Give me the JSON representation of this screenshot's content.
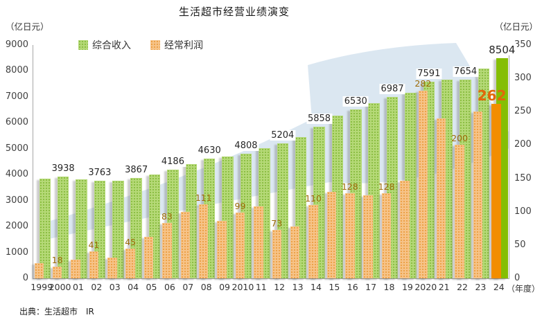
{
  "title": "生活超市经营业绩演变",
  "left_axis_unit": "（亿日元）",
  "right_axis_unit": "（亿日元）",
  "x_axis_unit": "（年度）",
  "source": "出典：生活超市　IR",
  "legend": [
    {
      "label": "综合收入",
      "color": "#a9d15f"
    },
    {
      "label": "经常利润",
      "color": "#f3ab57"
    }
  ],
  "colors": {
    "revenue_fill": "#b5d977",
    "revenue_dot": "#86b93c",
    "revenue_solid": "#85be05",
    "profit_fill": "#f6c388",
    "profit_dot": "#eb9c3e",
    "profit_solid": "#f28d00",
    "arrow_background": "#dbe7f1",
    "revenue_label": "#262626",
    "profit_label": "#9c6a08",
    "highlight_label": "#e2670b",
    "axis_line": "#a6a6a6"
  },
  "chart_data": {
    "type": "bar",
    "categories": [
      "1999",
      "2000",
      "01",
      "02",
      "03",
      "04",
      "05",
      "06",
      "07",
      "08",
      "09",
      "2010",
      "11",
      "12",
      "13",
      "14",
      "15",
      "16",
      "17",
      "18",
      "19",
      "2020",
      "21",
      "22",
      "23",
      "24"
    ],
    "series": [
      {
        "name": "综合收入",
        "axis": "left",
        "values": [
          3850,
          3938,
          3810,
          3763,
          3770,
          3867,
          4000,
          4186,
          4400,
          4630,
          4700,
          4808,
          5030,
          5204,
          5450,
          5858,
          6280,
          6530,
          6760,
          6987,
          7150,
          7591,
          7660,
          7654,
          8100,
          8504
        ],
        "labels": [
          "",
          "3938",
          "",
          "3763",
          "",
          "3867",
          "",
          "4186",
          "",
          "4630",
          "",
          "4808",
          "",
          "5204",
          "",
          "5858",
          "",
          "6530",
          "",
          "6987",
          "",
          "7591",
          "",
          "7654",
          "",
          "8504"
        ]
      },
      {
        "name": "经常利润",
        "axis": "right",
        "values": [
          23,
          18,
          28,
          41,
          31,
          45,
          62,
          83,
          100,
          111,
          86,
          99,
          108,
          73,
          78,
          110,
          130,
          128,
          125,
          128,
          147,
          282,
          240,
          200,
          250,
          262
        ],
        "labels": [
          "",
          "18",
          "",
          "41",
          "",
          "45",
          "",
          "83",
          "",
          "111",
          "",
          "99",
          "",
          "73",
          "",
          "110",
          "",
          "128",
          "",
          "128",
          "",
          "282",
          "",
          "200",
          "",
          "262"
        ]
      }
    ],
    "left_axis": {
      "min": 0,
      "max": 9000,
      "step": 1000
    },
    "right_axis": {
      "min": 0,
      "max": 350,
      "step": 50
    },
    "highlight_index": 25,
    "legend_position": "top",
    "grid": false
  }
}
